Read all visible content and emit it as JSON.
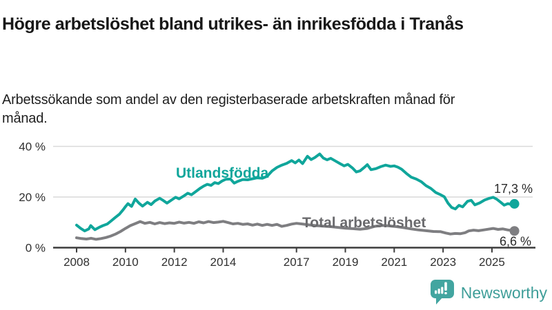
{
  "header": {
    "title": "Högre arbetslöshet bland utrikes- än inrikesfödda i Tranås",
    "subtitle": "Arbetssökande som andel av den registerbaserade arbetskraften månad för månad."
  },
  "branding": {
    "name": "Newsworthy",
    "icon": "newsworthy-speech-bubble-barchart-icon",
    "color": "#42a5a0"
  },
  "chart_data": {
    "type": "line",
    "title": "Högre arbetslöshet bland utrikes- än inrikesfödda i Tranås",
    "subtitle": "Arbetssökande som andel av den registerbaserade arbetskraften månad för månad.",
    "xlabel": "",
    "ylabel": "",
    "unit": "%",
    "grid": true,
    "legend_position": "inline-labels",
    "xlim": [
      2007.1,
      2026.2
    ],
    "ylim": [
      0,
      44
    ],
    "x_ticks": [
      2008,
      2010,
      2012,
      2014,
      2017,
      2019,
      2021,
      2023,
      2025
    ],
    "y_ticks": [
      {
        "value": 0,
        "label": "0 %"
      },
      {
        "value": 20,
        "label": "20 %"
      },
      {
        "value": 40,
        "label": "40 %"
      }
    ],
    "series": [
      {
        "name": "Utlandsfödda",
        "color": "#10a69b",
        "label_color": "#10a69b",
        "end_label": "17,3 %",
        "end_value": 17.3,
        "points": [
          [
            2008.0,
            8.9
          ],
          [
            2008.17,
            7.6
          ],
          [
            2008.33,
            6.6
          ],
          [
            2008.5,
            7.4
          ],
          [
            2008.58,
            8.7
          ],
          [
            2008.75,
            7.1
          ],
          [
            2008.92,
            8.0
          ],
          [
            2009.08,
            8.7
          ],
          [
            2009.25,
            9.3
          ],
          [
            2009.42,
            10.6
          ],
          [
            2009.58,
            11.9
          ],
          [
            2009.75,
            13.2
          ],
          [
            2009.9,
            14.9
          ],
          [
            2010.0,
            16.2
          ],
          [
            2010.1,
            17.4
          ],
          [
            2010.25,
            16.3
          ],
          [
            2010.4,
            19.2
          ],
          [
            2010.55,
            17.6
          ],
          [
            2010.7,
            16.4
          ],
          [
            2010.9,
            17.9
          ],
          [
            2011.05,
            17.0
          ],
          [
            2011.2,
            18.4
          ],
          [
            2011.4,
            19.5
          ],
          [
            2011.55,
            18.6
          ],
          [
            2011.7,
            17.6
          ],
          [
            2011.9,
            18.9
          ],
          [
            2012.05,
            19.9
          ],
          [
            2012.2,
            19.3
          ],
          [
            2012.4,
            20.5
          ],
          [
            2012.55,
            21.5
          ],
          [
            2012.7,
            20.9
          ],
          [
            2012.9,
            22.3
          ],
          [
            2013.05,
            23.4
          ],
          [
            2013.2,
            24.3
          ],
          [
            2013.35,
            25.0
          ],
          [
            2013.5,
            24.6
          ],
          [
            2013.65,
            25.7
          ],
          [
            2013.8,
            25.3
          ],
          [
            2013.95,
            26.3
          ],
          [
            2014.1,
            27.0
          ],
          [
            2014.3,
            27.1
          ],
          [
            2014.45,
            25.5
          ],
          [
            2014.6,
            26.2
          ],
          [
            2014.8,
            26.9
          ],
          [
            2015.0,
            26.8
          ],
          [
            2015.2,
            27.2
          ],
          [
            2015.4,
            27.6
          ],
          [
            2015.6,
            27.4
          ],
          [
            2015.8,
            28.2
          ],
          [
            2016.0,
            30.3
          ],
          [
            2016.2,
            31.7
          ],
          [
            2016.4,
            32.6
          ],
          [
            2016.6,
            33.3
          ],
          [
            2016.8,
            34.4
          ],
          [
            2016.95,
            33.5
          ],
          [
            2017.1,
            34.6
          ],
          [
            2017.25,
            33.2
          ],
          [
            2017.45,
            36.1
          ],
          [
            2017.6,
            34.8
          ],
          [
            2017.75,
            35.6
          ],
          [
            2017.95,
            37.0
          ],
          [
            2018.1,
            35.4
          ],
          [
            2018.25,
            34.7
          ],
          [
            2018.4,
            35.3
          ],
          [
            2018.6,
            34.2
          ],
          [
            2018.8,
            33.1
          ],
          [
            2018.95,
            32.3
          ],
          [
            2019.1,
            32.9
          ],
          [
            2019.3,
            31.4
          ],
          [
            2019.45,
            29.9
          ],
          [
            2019.6,
            30.3
          ],
          [
            2019.75,
            31.5
          ],
          [
            2019.9,
            32.8
          ],
          [
            2020.05,
            30.8
          ],
          [
            2020.25,
            31.2
          ],
          [
            2020.45,
            32.0
          ],
          [
            2020.65,
            32.6
          ],
          [
            2020.85,
            32.1
          ],
          [
            2021.0,
            32.3
          ],
          [
            2021.15,
            31.8
          ],
          [
            2021.3,
            31.0
          ],
          [
            2021.5,
            29.3
          ],
          [
            2021.7,
            27.8
          ],
          [
            2021.9,
            27.1
          ],
          [
            2022.1,
            26.1
          ],
          [
            2022.3,
            24.5
          ],
          [
            2022.5,
            23.4
          ],
          [
            2022.7,
            21.8
          ],
          [
            2022.9,
            20.9
          ],
          [
            2023.05,
            20.1
          ],
          [
            2023.2,
            17.6
          ],
          [
            2023.35,
            15.9
          ],
          [
            2023.5,
            15.3
          ],
          [
            2023.65,
            16.7
          ],
          [
            2023.8,
            16.1
          ],
          [
            2024.0,
            18.3
          ],
          [
            2024.15,
            18.7
          ],
          [
            2024.3,
            16.9
          ],
          [
            2024.5,
            17.7
          ],
          [
            2024.7,
            18.8
          ],
          [
            2024.9,
            19.5
          ],
          [
            2025.05,
            19.9
          ],
          [
            2025.2,
            19.1
          ],
          [
            2025.35,
            18.0
          ],
          [
            2025.5,
            16.8
          ],
          [
            2025.65,
            17.4
          ],
          [
            2025.8,
            17.0
          ],
          [
            2025.92,
            17.3
          ]
        ]
      },
      {
        "name": "Total arbetslöshet",
        "color": "#7e7e81",
        "label_color": "#6a6a6d",
        "end_label": "6,6 %",
        "end_value": 6.6,
        "points": [
          [
            2008.0,
            3.9
          ],
          [
            2008.2,
            3.6
          ],
          [
            2008.4,
            3.4
          ],
          [
            2008.6,
            3.7
          ],
          [
            2008.8,
            3.3
          ],
          [
            2009.0,
            3.6
          ],
          [
            2009.2,
            4.0
          ],
          [
            2009.4,
            4.6
          ],
          [
            2009.6,
            5.4
          ],
          [
            2009.8,
            6.4
          ],
          [
            2010.0,
            7.6
          ],
          [
            2010.2,
            8.7
          ],
          [
            2010.4,
            9.5
          ],
          [
            2010.6,
            10.3
          ],
          [
            2010.8,
            9.6
          ],
          [
            2011.0,
            10.0
          ],
          [
            2011.2,
            9.4
          ],
          [
            2011.4,
            9.9
          ],
          [
            2011.6,
            9.5
          ],
          [
            2011.8,
            9.8
          ],
          [
            2012.0,
            9.6
          ],
          [
            2012.2,
            10.1
          ],
          [
            2012.4,
            9.7
          ],
          [
            2012.6,
            10.0
          ],
          [
            2012.8,
            9.6
          ],
          [
            2013.0,
            10.2
          ],
          [
            2013.2,
            9.8
          ],
          [
            2013.4,
            10.3
          ],
          [
            2013.6,
            9.9
          ],
          [
            2013.8,
            10.1
          ],
          [
            2014.0,
            10.4
          ],
          [
            2014.2,
            9.9
          ],
          [
            2014.4,
            9.4
          ],
          [
            2014.6,
            9.6
          ],
          [
            2014.8,
            9.2
          ],
          [
            2015.0,
            9.4
          ],
          [
            2015.2,
            8.9
          ],
          [
            2015.4,
            9.3
          ],
          [
            2015.6,
            8.8
          ],
          [
            2015.8,
            9.2
          ],
          [
            2016.0,
            8.8
          ],
          [
            2016.2,
            9.2
          ],
          [
            2016.4,
            8.4
          ],
          [
            2016.6,
            8.8
          ],
          [
            2016.8,
            9.3
          ],
          [
            2017.0,
            9.6
          ],
          [
            2017.2,
            9.4
          ],
          [
            2017.5,
            9.0
          ],
          [
            2017.8,
            8.7
          ],
          [
            2018.1,
            8.5
          ],
          [
            2018.4,
            8.3
          ],
          [
            2018.7,
            8.0
          ],
          [
            2019.0,
            7.7
          ],
          [
            2019.3,
            7.5
          ],
          [
            2019.6,
            7.3
          ],
          [
            2019.9,
            7.6
          ],
          [
            2020.2,
            8.4
          ],
          [
            2020.5,
            8.8
          ],
          [
            2020.8,
            8.6
          ],
          [
            2021.1,
            8.3
          ],
          [
            2021.4,
            7.9
          ],
          [
            2021.7,
            7.4
          ],
          [
            2022.0,
            7.0
          ],
          [
            2022.3,
            6.7
          ],
          [
            2022.6,
            6.4
          ],
          [
            2022.9,
            6.3
          ],
          [
            2023.1,
            5.8
          ],
          [
            2023.3,
            5.4
          ],
          [
            2023.5,
            5.6
          ],
          [
            2023.7,
            5.5
          ],
          [
            2023.9,
            5.9
          ],
          [
            2024.05,
            6.6
          ],
          [
            2024.25,
            6.9
          ],
          [
            2024.45,
            6.7
          ],
          [
            2024.65,
            7.0
          ],
          [
            2024.85,
            7.3
          ],
          [
            2025.05,
            7.6
          ],
          [
            2025.25,
            7.2
          ],
          [
            2025.45,
            7.4
          ],
          [
            2025.65,
            7.0
          ],
          [
            2025.8,
            6.8
          ],
          [
            2025.92,
            6.6
          ]
        ]
      }
    ]
  }
}
